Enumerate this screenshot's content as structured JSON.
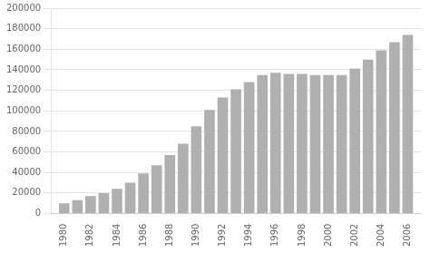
{
  "chart_data": {
    "type": "bar",
    "x": [
      1980,
      1981,
      1982,
      1983,
      1984,
      1985,
      1986,
      1987,
      1988,
      1989,
      1990,
      1991,
      1992,
      1993,
      1994,
      1995,
      1996,
      1997,
      1998,
      1999,
      2000,
      2001,
      2002,
      2003,
      2004,
      2005,
      2006
    ],
    "values": [
      10000,
      13000,
      17000,
      20000,
      24000,
      30000,
      39000,
      47000,
      57000,
      68000,
      85000,
      101000,
      113000,
      121000,
      128000,
      135000,
      137000,
      136000,
      136000,
      135000,
      135000,
      135000,
      141000,
      150000,
      159000,
      167000,
      174000
    ],
    "color": "#b0b0b0",
    "xlim": [
      1979,
      2007
    ],
    "xticks": [
      1980,
      1982,
      1984,
      1986,
      1988,
      1990,
      1992,
      1994,
      1996,
      1998,
      2000,
      2002,
      2004,
      2006
    ],
    "ylim": [
      0,
      200000
    ],
    "yticks": [
      0,
      20000,
      40000,
      60000,
      80000,
      100000,
      120000,
      140000,
      160000,
      180000,
      200000
    ],
    "grid": true
  }
}
